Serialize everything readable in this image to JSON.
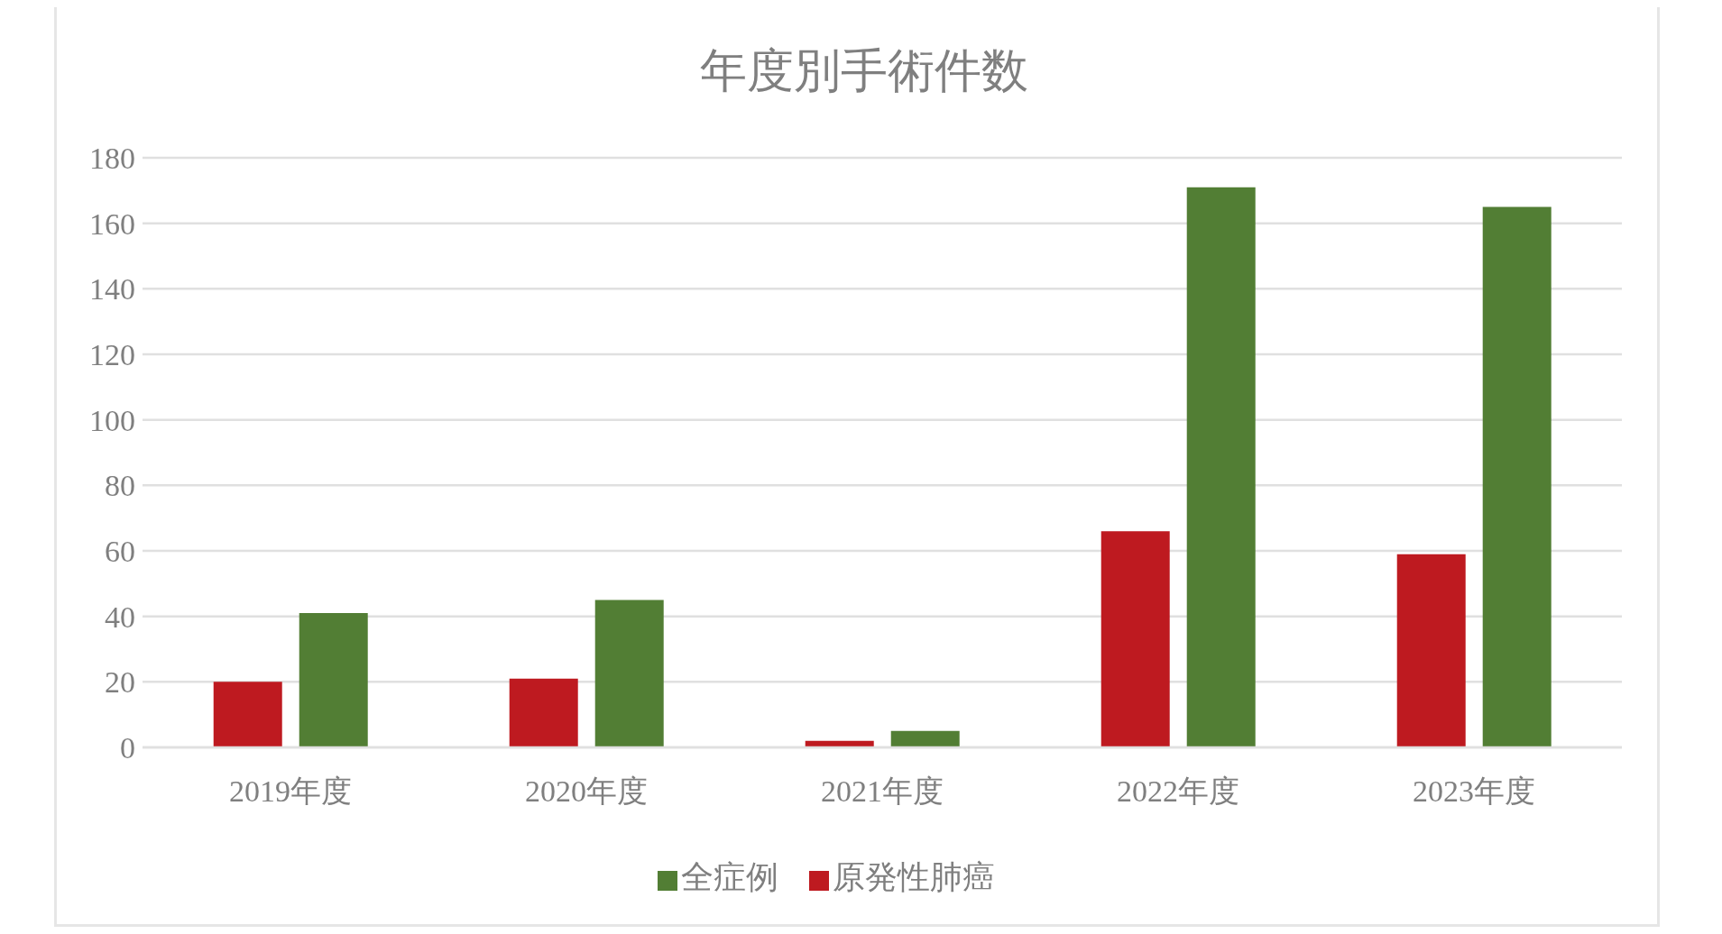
{
  "chart_data": {
    "type": "bar",
    "title": "年度別手術件数",
    "categories": [
      "2019年度",
      "2020年度",
      "2021年度",
      "2022年度",
      "2023年度"
    ],
    "series": [
      {
        "name": "原発性肺癌",
        "color": "#be1a20",
        "values": [
          20,
          21,
          2,
          66,
          59
        ]
      },
      {
        "name": "全症例",
        "color": "#527e34",
        "values": [
          41,
          45,
          5,
          171,
          165
        ]
      }
    ],
    "ylim": [
      0,
      180
    ],
    "yticks": [
      0,
      20,
      40,
      60,
      80,
      100,
      120,
      140,
      160,
      180
    ],
    "grid": "y",
    "legend": "bottom"
  }
}
